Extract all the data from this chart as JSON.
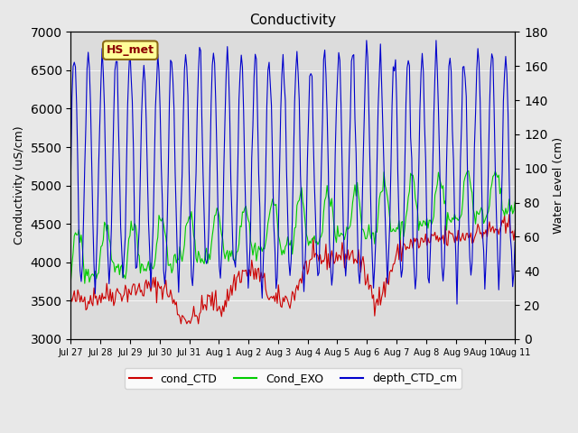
{
  "title": "Conductivity",
  "xlabel": "",
  "ylabel_left": "Conductivity (uS/cm)",
  "ylabel_right": "Water Level (cm)",
  "ylim_left": [
    3000,
    7000
  ],
  "ylim_right": [
    0,
    180
  ],
  "yticks_left": [
    3000,
    3500,
    4000,
    4500,
    5000,
    5500,
    6000,
    6500,
    7000
  ],
  "yticks_right": [
    0,
    20,
    40,
    60,
    80,
    100,
    120,
    140,
    160,
    180
  ],
  "xtick_labels": [
    "Jul 27",
    "Jul 28",
    "Jul 29",
    "Jul 30",
    "Jul 31",
    "Aug 1",
    "Aug 2",
    "Aug 3",
    "Aug 4",
    "Aug 5",
    "Aug 6",
    "Aug 7",
    "Aug 8",
    "Aug 9",
    "Aug 10",
    "Aug 11"
  ],
  "annotation_text": "HS_met",
  "annotation_color": "#8B0000",
  "annotation_bg": "#FFFF99",
  "background_color": "#E8E8E8",
  "plot_bg": "#DCDCDC",
  "legend_entries": [
    "cond_CTD",
    "Cond_EXO",
    "depth_CTD_cm"
  ],
  "legend_colors": [
    "#CC0000",
    "#00CC00",
    "#0000CC"
  ],
  "line_colors": [
    "#CC0000",
    "#00CC00",
    "#0000CC"
  ],
  "figsize": [
    6.4,
    4.8
  ],
  "dpi": 100
}
